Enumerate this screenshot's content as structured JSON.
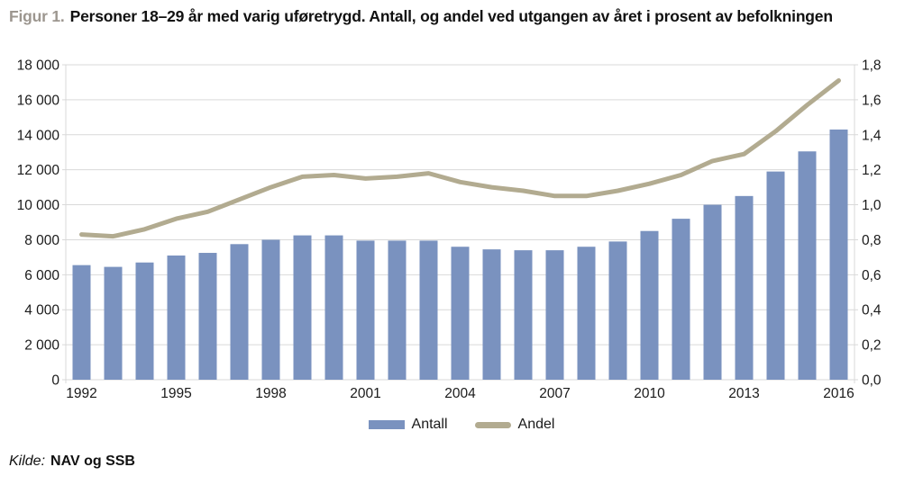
{
  "figure": {
    "label": "Figur 1.",
    "title": "Personer 18–29 år med varig uføretrygd. Antall, og andel ved utgangen av året i prosent av befolkningen"
  },
  "source": {
    "prefix": "Kilde:",
    "text": "NAV og SSB"
  },
  "legend": [
    {
      "label": "Antall",
      "type": "bar",
      "color": "#7A92BF"
    },
    {
      "label": "Andel",
      "type": "line",
      "color": "#B2AB90"
    }
  ],
  "colors": {
    "bar": "#7A92BF",
    "line": "#B2AB90",
    "grid": "#D9D9D9",
    "axis_text": "#1A1A1A",
    "figure_label": "#9C968F",
    "background": "#FFFFFF"
  },
  "chart_data": {
    "type": "bar+line",
    "title": "Personer 18–29 år med varig uføretrygd. Antall, og andel ved utgangen av året i prosent av befolkningen",
    "categories": [
      1992,
      1993,
      1994,
      1995,
      1996,
      1997,
      1998,
      1999,
      2000,
      2001,
      2002,
      2003,
      2004,
      2005,
      2006,
      2007,
      2008,
      2009,
      2010,
      2011,
      2012,
      2013,
      2014,
      2015,
      2016
    ],
    "series": [
      {
        "name": "Antall",
        "type": "bar",
        "axis": "left",
        "color": "#7A92BF",
        "values": [
          6550,
          6450,
          6700,
          7100,
          7250,
          7750,
          8000,
          8250,
          8250,
          7950,
          7950,
          7950,
          7600,
          7450,
          7400,
          7400,
          7600,
          7900,
          8500,
          9200,
          10000,
          10500,
          11900,
          13050,
          14300
        ]
      },
      {
        "name": "Andel",
        "type": "line",
        "axis": "right",
        "color": "#B2AB90",
        "values": [
          0.83,
          0.82,
          0.86,
          0.92,
          0.96,
          1.03,
          1.1,
          1.16,
          1.17,
          1.15,
          1.16,
          1.18,
          1.13,
          1.1,
          1.08,
          1.05,
          1.05,
          1.08,
          1.12,
          1.17,
          1.25,
          1.29,
          1.42,
          1.57,
          1.71
        ]
      }
    ],
    "left_axis": {
      "min": 0,
      "max": 18000,
      "step": 2000,
      "tick_labels": [
        "0",
        "2 000",
        "4 000",
        "6 000",
        "8 000",
        "10 000",
        "12 000",
        "14 000",
        "16 000",
        "18 000"
      ]
    },
    "right_axis": {
      "min": 0,
      "max": 1.8,
      "step": 0.2,
      "tick_labels": [
        "0,0",
        "0,2",
        "0,4",
        "0,6",
        "0,8",
        "1,0",
        "1,2",
        "1,4",
        "1,6",
        "1,8"
      ]
    },
    "x_ticks": [
      {
        "index": 0,
        "label": "1992"
      },
      {
        "index": 3,
        "label": "1995"
      },
      {
        "index": 6,
        "label": "1998"
      },
      {
        "index": 9,
        "label": "2001"
      },
      {
        "index": 12,
        "label": "2004"
      },
      {
        "index": 15,
        "label": "2007"
      },
      {
        "index": 18,
        "label": "2010"
      },
      {
        "index": 21,
        "label": "2013"
      },
      {
        "index": 24,
        "label": "2016"
      }
    ],
    "grid": true,
    "legend_position": "bottom"
  }
}
